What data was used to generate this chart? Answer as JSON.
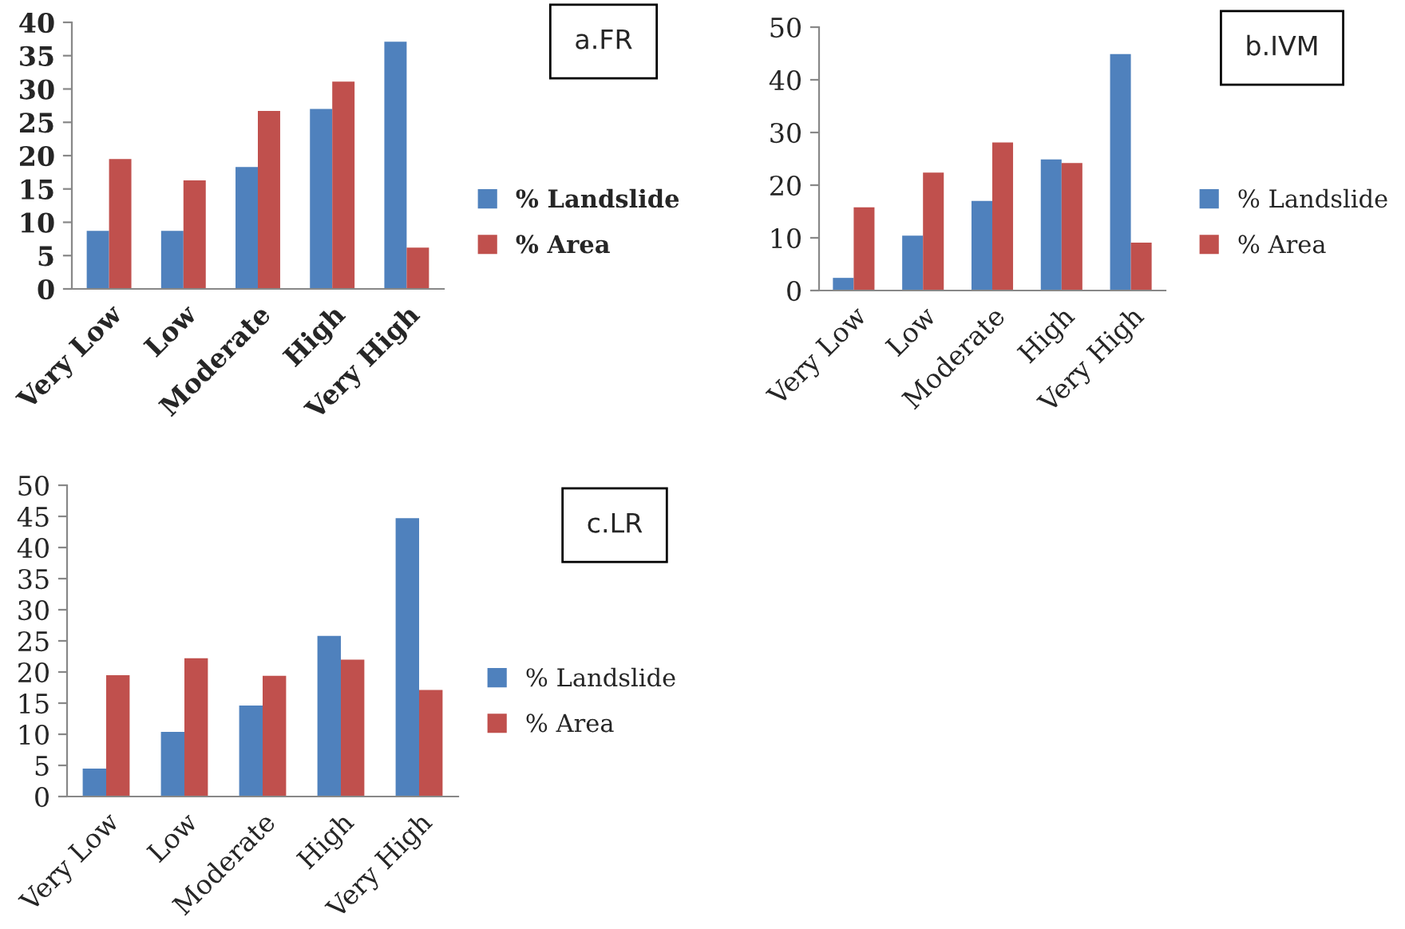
{
  "chart_data": [
    {
      "type": "bar",
      "annotations": [
        "a.FR"
      ],
      "categories": [
        "Very Low",
        "Low",
        "Moderate",
        "High",
        "Very High"
      ],
      "series": [
        {
          "name": "% Landslide",
          "color": "#4f81bd",
          "values": [
            8.7,
            8.7,
            18.3,
            27.0,
            37.1
          ]
        },
        {
          "name": "% Area",
          "color": "#c0504d",
          "values": [
            19.5,
            16.3,
            26.7,
            31.1,
            6.2
          ]
        }
      ],
      "ylim": [
        0,
        40
      ],
      "yticks": [
        0,
        5,
        10,
        15,
        20,
        25,
        30,
        35,
        40
      ],
      "grid": false,
      "legend": "right"
    },
    {
      "type": "bar",
      "annotations": [
        "b.IVM"
      ],
      "categories": [
        "Very Low",
        "Low",
        "Moderate",
        "High",
        "Very High"
      ],
      "series": [
        {
          "name": "% Landslide",
          "color": "#4f81bd",
          "values": [
            2.4,
            10.4,
            17.0,
            24.9,
            44.9
          ]
        },
        {
          "name": "% Area",
          "color": "#c0504d",
          "values": [
            15.8,
            22.4,
            28.1,
            24.2,
            9.1
          ]
        }
      ],
      "ylim": [
        0,
        50
      ],
      "yticks": [
        0,
        10,
        20,
        30,
        40,
        50
      ],
      "grid": false,
      "legend": "right"
    },
    {
      "type": "bar",
      "annotations": [
        "c.LR"
      ],
      "categories": [
        "Very Low",
        "Low",
        "Moderate",
        "High",
        "Very High"
      ],
      "series": [
        {
          "name": "% Landslide",
          "color": "#4f81bd",
          "values": [
            4.5,
            10.4,
            14.6,
            25.8,
            44.7
          ]
        },
        {
          "name": "% Area",
          "color": "#c0504d",
          "values": [
            19.5,
            22.2,
            19.4,
            22.0,
            17.1
          ]
        }
      ],
      "ylim": [
        0,
        50
      ],
      "yticks": [
        0,
        5,
        10,
        15,
        20,
        25,
        30,
        35,
        40,
        45,
        50
      ],
      "grid": false,
      "legend": "right"
    }
  ]
}
